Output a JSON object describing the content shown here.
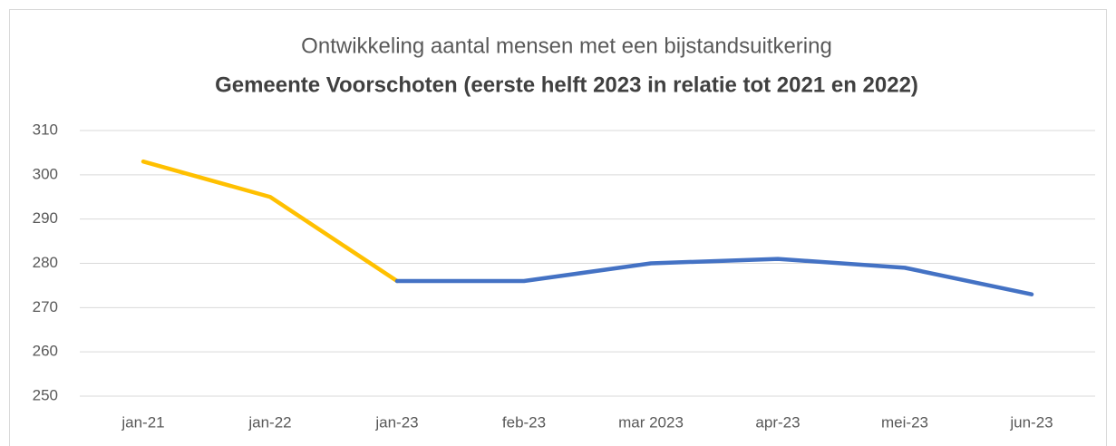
{
  "chart_data": {
    "type": "line",
    "title": "Ontwikkeling aantal mensen met een bijstandsuitkering",
    "subtitle": "Gemeente Voorschoten (eerste helft 2023 in relatie tot 2021 en 2022)",
    "categories": [
      "jan-21",
      "jan-22",
      "jan-23",
      "feb-23",
      "mar 2023",
      "apr-23",
      "mei-23",
      "jun-23"
    ],
    "series": [
      {
        "color": "#FFC000",
        "values": [
          303,
          295,
          276,
          null,
          null,
          null,
          null,
          null
        ]
      },
      {
        "color": "#4472C4",
        "values": [
          null,
          null,
          276,
          276,
          280,
          281,
          279,
          273
        ]
      }
    ],
    "ylim": [
      250,
      310
    ],
    "yticks": [
      250,
      260,
      270,
      280,
      290,
      300,
      310
    ],
    "grid": true
  }
}
